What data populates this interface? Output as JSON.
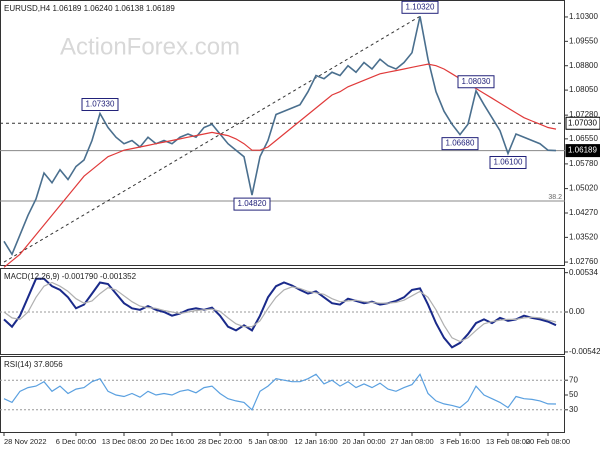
{
  "chart_data": [
    {
      "type": "line",
      "title": "EURUSD,H4  1.06189 1.06240 1.06138 1.06189",
      "watermark": "ActionForex.com",
      "categories": [
        "28 Nov 2022",
        null,
        null,
        null,
        null,
        null,
        null,
        null,
        null,
        "6 Dec 00:00",
        null,
        null,
        null,
        null,
        null,
        "13 Dec 08:00",
        null,
        null,
        null,
        null,
        null,
        "20 Dec 16:00",
        null,
        null,
        null,
        null,
        null,
        "28 Dec 20:00",
        null,
        null,
        null,
        null,
        null,
        "5 Jan 08:00",
        null,
        null,
        null,
        null,
        null,
        "12 Jan 16:00",
        null,
        null,
        null,
        null,
        null,
        "20 Jan 00:00",
        null,
        null,
        null,
        null,
        null,
        "27 Jan 08:00",
        null,
        null,
        null,
        null,
        null,
        "3 Feb 16:00",
        null,
        null,
        null,
        null,
        null,
        "13 Feb 08:00",
        null,
        null,
        null,
        null,
        "20 Feb 08:00",
        null
      ],
      "series": [
        {
          "name": "EURUSD",
          "color": "#4a6f8e",
          "values": [
            1.034,
            1.03,
            1.036,
            1.042,
            1.047,
            1.055,
            1.052,
            1.056,
            1.053,
            1.057,
            1.059,
            1.065,
            1.0733,
            1.069,
            1.066,
            1.064,
            1.065,
            1.063,
            1.066,
            1.064,
            1.065,
            1.064,
            1.066,
            1.067,
            1.066,
            1.069,
            1.07,
            1.067,
            1.064,
            1.062,
            1.06,
            1.0482,
            1.06,
            1.065,
            1.073,
            1.074,
            1.075,
            1.076,
            1.08,
            1.085,
            1.084,
            1.086,
            1.085,
            1.088,
            1.086,
            1.089,
            1.087,
            1.09,
            1.088,
            1.087,
            1.089,
            1.092,
            1.1032,
            1.09,
            1.08,
            1.074,
            1.07,
            1.0668,
            1.07,
            1.0803,
            1.076,
            1.072,
            1.068,
            1.061,
            1.067,
            1.066,
            1.065,
            1.064,
            1.062,
            1.0619
          ]
        },
        {
          "name": "MA",
          "color": "#e03a3a",
          "values": [
            1.026,
            1.028,
            1.03,
            1.033,
            1.036,
            1.039,
            1.042,
            1.045,
            1.048,
            1.051,
            1.054,
            1.056,
            1.058,
            1.06,
            1.061,
            1.062,
            1.0625,
            1.063,
            1.0635,
            1.064,
            1.0645,
            1.065,
            1.0655,
            1.066,
            1.0665,
            1.067,
            1.0675,
            1.067,
            1.0665,
            1.0655,
            1.064,
            1.062,
            1.062,
            1.063,
            1.065,
            1.067,
            1.069,
            1.071,
            1.073,
            1.075,
            1.077,
            1.079,
            1.08,
            1.0815,
            1.0825,
            1.0835,
            1.0845,
            1.0855,
            1.086,
            1.0865,
            1.087,
            1.0875,
            1.088,
            1.0885,
            1.088,
            1.087,
            1.0855,
            1.084,
            1.0825,
            1.081,
            1.0795,
            1.078,
            1.0765,
            1.075,
            1.0735,
            1.072,
            1.071,
            1.07,
            1.069,
            1.0685
          ]
        }
      ],
      "ylim": [
        1.0267,
        1.1076
      ],
      "yticks": [
        {
          "value": 1.103,
          "label": "1.10300"
        },
        {
          "value": 1.0955,
          "label": "1.09550"
        },
        {
          "value": 1.088,
          "label": "1.08800"
        },
        {
          "value": 1.0805,
          "label": "1.08050"
        },
        {
          "value": 1.0728,
          "label": "1.07280"
        },
        {
          "value": 1.0655,
          "label": "1.06550"
        },
        {
          "value": 1.0578,
          "label": "1.05780"
        },
        {
          "value": 1.0502,
          "label": "1.05020"
        },
        {
          "value": 1.0427,
          "label": "1.04270"
        },
        {
          "value": 1.0352,
          "label": "1.03520"
        },
        {
          "value": 1.0276,
          "label": "1.02760"
        }
      ],
      "annotations": [
        {
          "text": "1.10320",
          "value": 1.1032
        },
        {
          "text": "1.07330",
          "value": 1.0733
        },
        {
          "text": "1.04820",
          "value": 1.0482
        },
        {
          "text": "1.06680",
          "value": 1.0668
        },
        {
          "text": "1.08030",
          "value": 1.0803
        },
        {
          "text": "1.06100",
          "value": 1.061
        }
      ],
      "levels": [
        {
          "value": 1.0703,
          "label": "1.07030",
          "style": "dashed"
        },
        {
          "value": 1.06189,
          "label": "1.06189",
          "style": "solid"
        }
      ],
      "fib": {
        "value": 1.0464,
        "label": "38.2"
      },
      "trendline": {
        "start": 1.0276,
        "end": 1.1032
      }
    },
    {
      "type": "line",
      "title": "MACD(12,26,9) -0.001790 -0.001352",
      "series": [
        {
          "name": "MACD",
          "color": "#1a2a8a",
          "values": [
            -0.001,
            -0.002,
            -0.0005,
            0.002,
            0.0045,
            0.0045,
            0.0035,
            0.003,
            0.002,
            0.0005,
            0.001,
            0.0025,
            0.004,
            0.0038,
            0.0025,
            0.0012,
            0.0005,
            0.0003,
            0.0008,
            0.0003,
            0.0,
            -0.0005,
            -0.0002,
            0.0003,
            0.0005,
            0.0003,
            0.0006,
            -0.0005,
            -0.002,
            -0.0025,
            -0.0018,
            -0.0025,
            -0.0005,
            0.002,
            0.0035,
            0.004,
            0.0036,
            0.003,
            0.0025,
            0.0028,
            0.002,
            0.0012,
            0.001,
            0.0018,
            0.0015,
            0.0012,
            0.0014,
            0.001,
            0.0012,
            0.0015,
            0.002,
            0.003,
            0.0032,
            0.001,
            -0.0015,
            -0.0035,
            -0.0048,
            -0.0042,
            -0.003,
            -0.0015,
            -0.001,
            -0.0015,
            -0.0008,
            -0.0012,
            -0.001,
            -0.0005,
            -0.0008,
            -0.001,
            -0.0013,
            -0.00179
          ]
        },
        {
          "name": "Signal",
          "color": "#b0b0b0",
          "values": [
            0.0,
            -0.0008,
            -0.001,
            0.0,
            0.002,
            0.0035,
            0.004,
            0.0035,
            0.0028,
            0.0018,
            0.0012,
            0.0015,
            0.0025,
            0.0033,
            0.003,
            0.0022,
            0.0014,
            0.0008,
            0.0006,
            0.0005,
            0.0002,
            0.0,
            -0.0002,
            0.0,
            0.0002,
            0.0003,
            0.0004,
            0.0001,
            -0.0008,
            -0.0016,
            -0.002,
            -0.002,
            -0.0012,
            0.0005,
            0.002,
            0.003,
            0.0034,
            0.0032,
            0.0028,
            0.0026,
            0.0024,
            0.0018,
            0.0014,
            0.0015,
            0.0016,
            0.0014,
            0.0013,
            0.0012,
            0.0012,
            0.0013,
            0.0016,
            0.0022,
            0.0028,
            0.002,
            0.0003,
            -0.0018,
            -0.0035,
            -0.004,
            -0.0035,
            -0.0025,
            -0.0016,
            -0.0013,
            -0.0011,
            -0.001,
            -0.001,
            -0.0008,
            -0.0007,
            -0.0008,
            -0.0011,
            -0.001352
          ]
        }
      ],
      "ylim": [
        -0.0057,
        0.0057
      ],
      "yticks": [
        0.00534,
        {
          "value": 0,
          "label": "0.00"
        },
        -0.005421
      ]
    },
    {
      "type": "line",
      "title": "RSI(14) 37.8056",
      "series": [
        {
          "name": "RSI",
          "color": "#5aa0e0",
          "values": [
            45,
            40,
            55,
            60,
            62,
            68,
            55,
            62,
            52,
            58,
            60,
            68,
            72,
            55,
            50,
            48,
            52,
            47,
            55,
            50,
            52,
            50,
            55,
            57,
            53,
            60,
            62,
            52,
            45,
            42,
            40,
            30,
            55,
            62,
            72,
            70,
            68,
            68,
            72,
            78,
            65,
            70,
            62,
            68,
            60,
            65,
            60,
            66,
            58,
            55,
            60,
            64,
            78,
            52,
            42,
            38,
            36,
            33,
            42,
            62,
            50,
            45,
            40,
            33,
            48,
            45,
            44,
            42,
            38,
            37.8056
          ]
        }
      ],
      "ylim": [
        0,
        100
      ],
      "yticks": [
        70,
        50,
        30
      ]
    }
  ]
}
